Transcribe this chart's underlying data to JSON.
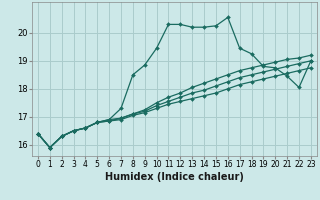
{
  "xlabel": "Humidex (Indice chaleur)",
  "background_color": "#cce8e8",
  "grid_color": "#aacccc",
  "line_color": "#1a6b60",
  "x_data": [
    0,
    1,
    2,
    3,
    4,
    5,
    6,
    7,
    8,
    9,
    10,
    11,
    12,
    13,
    14,
    15,
    16,
    17,
    18,
    19,
    20,
    21,
    22,
    23
  ],
  "series": [
    [
      16.4,
      15.9,
      16.3,
      16.5,
      16.6,
      16.8,
      16.9,
      17.3,
      18.5,
      18.85,
      19.45,
      20.3,
      20.3,
      20.2,
      20.2,
      20.25,
      20.55,
      19.45,
      19.25,
      18.8,
      18.75,
      18.45,
      18.05,
      19.0
    ],
    [
      16.4,
      15.9,
      16.3,
      16.5,
      16.6,
      16.8,
      16.9,
      16.95,
      17.1,
      17.25,
      17.5,
      17.7,
      17.85,
      18.05,
      18.2,
      18.35,
      18.5,
      18.65,
      18.75,
      18.85,
      18.95,
      19.05,
      19.1,
      19.2
    ],
    [
      16.4,
      15.9,
      16.3,
      16.5,
      16.6,
      16.8,
      16.85,
      16.95,
      17.1,
      17.2,
      17.4,
      17.55,
      17.7,
      17.85,
      17.95,
      18.1,
      18.25,
      18.4,
      18.5,
      18.6,
      18.7,
      18.8,
      18.9,
      19.0
    ],
    [
      16.4,
      15.9,
      16.3,
      16.5,
      16.6,
      16.8,
      16.85,
      16.9,
      17.05,
      17.15,
      17.3,
      17.45,
      17.55,
      17.65,
      17.75,
      17.85,
      18.0,
      18.15,
      18.25,
      18.35,
      18.45,
      18.55,
      18.65,
      18.75
    ]
  ],
  "ylim": [
    15.6,
    21.1
  ],
  "xlim": [
    -0.5,
    23.5
  ],
  "yticks": [
    16,
    17,
    18,
    19,
    20
  ],
  "xticks": [
    0,
    1,
    2,
    3,
    4,
    5,
    6,
    7,
    8,
    9,
    10,
    11,
    12,
    13,
    14,
    15,
    16,
    17,
    18,
    19,
    20,
    21,
    22,
    23
  ],
  "marker": "D",
  "marker_size": 2.0,
  "line_width": 0.9,
  "label_fontsize": 7,
  "tick_fontsize": 6
}
